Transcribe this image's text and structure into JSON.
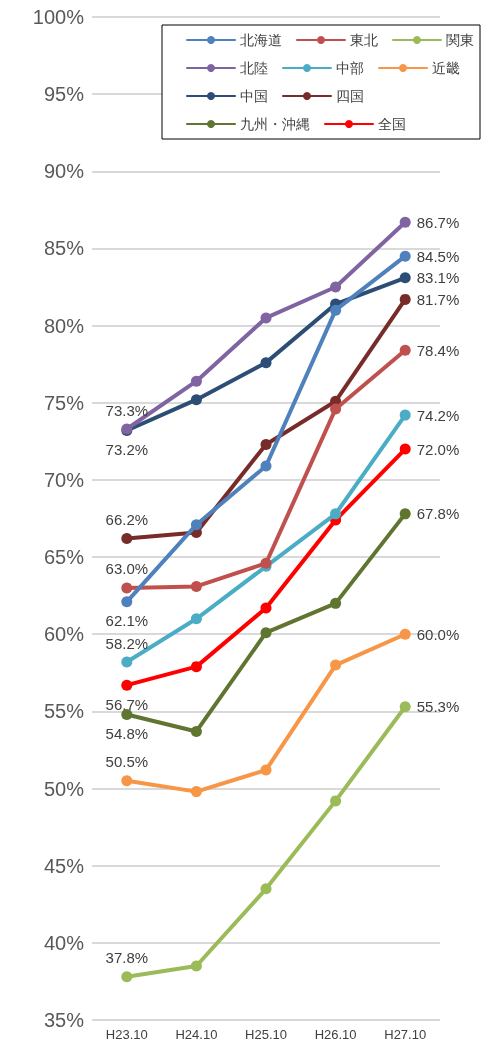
{
  "chart_data": {
    "type": "line",
    "categories": [
      "H23.10",
      "H24.10",
      "H25.10",
      "H26.10",
      "H27.10"
    ],
    "series": [
      {
        "name": "北海道",
        "color": "#4f81bd",
        "values": [
          62.1,
          67.1,
          70.9,
          81.0,
          84.5
        ],
        "value_labels": [
          "62.1%",
          null,
          null,
          null,
          "84.5%"
        ]
      },
      {
        "name": "東北",
        "color": "#c0504d",
        "values": [
          63.0,
          63.1,
          64.6,
          74.6,
          78.4
        ],
        "value_labels": [
          "63.0%",
          null,
          null,
          null,
          "78.4%"
        ]
      },
      {
        "name": "関東",
        "color": "#9bbb59",
        "values": [
          37.8,
          38.5,
          43.5,
          49.2,
          55.3
        ],
        "value_labels": [
          "37.8%",
          null,
          null,
          null,
          "55.3%"
        ]
      },
      {
        "name": "北陸",
        "color": "#8064a2",
        "values": [
          73.3,
          76.4,
          80.5,
          82.5,
          86.7
        ],
        "value_labels": [
          "73.3%",
          null,
          null,
          null,
          "86.7%"
        ]
      },
      {
        "name": "中部",
        "color": "#4bacc6",
        "values": [
          58.2,
          61.0,
          64.4,
          67.8,
          74.2
        ],
        "value_labels": [
          "58.2%",
          null,
          null,
          null,
          "74.2%"
        ]
      },
      {
        "name": "近畿",
        "color": "#f79646",
        "values": [
          50.5,
          49.8,
          51.2,
          58.0,
          60.0
        ],
        "value_labels": [
          "50.5%",
          null,
          null,
          null,
          "60.0%"
        ]
      },
      {
        "name": "中国",
        "color": "#2c4d75",
        "values": [
          73.2,
          75.2,
          77.6,
          81.4,
          83.1
        ],
        "value_labels": [
          "73.2%",
          null,
          null,
          null,
          "83.1%"
        ]
      },
      {
        "name": "四国",
        "color": "#772c2a",
        "values": [
          66.2,
          66.6,
          72.3,
          75.1,
          81.7
        ],
        "value_labels": [
          "66.2%",
          null,
          null,
          null,
          "81.7%"
        ]
      },
      {
        "name": "九州・沖縄",
        "color": "#5f7530",
        "values": [
          54.8,
          53.7,
          60.1,
          62.0,
          67.8
        ],
        "value_labels": [
          "54.8%",
          null,
          null,
          null,
          "67.8%"
        ]
      },
      {
        "name": "全国",
        "color": "#ff0000",
        "values": [
          56.7,
          57.9,
          61.7,
          67.4,
          72.0
        ],
        "value_labels": [
          "56.7%",
          null,
          null,
          null,
          "72.0%"
        ]
      }
    ],
    "ylim": [
      35,
      100
    ],
    "yticks": [
      {
        "value": 35,
        "label": "35%"
      },
      {
        "value": 40,
        "label": "40%"
      },
      {
        "value": 45,
        "label": "45%"
      },
      {
        "value": 50,
        "label": "50%"
      },
      {
        "value": 55,
        "label": "55%"
      },
      {
        "value": 60,
        "label": "60%"
      },
      {
        "value": 65,
        "label": "65%"
      },
      {
        "value": 70,
        "label": "70%"
      },
      {
        "value": 75,
        "label": "75%"
      },
      {
        "value": 80,
        "label": "80%"
      },
      {
        "value": 85,
        "label": "85%"
      },
      {
        "value": 90,
        "label": "90%"
      },
      {
        "value": 95,
        "label": "95%"
      },
      {
        "value": 100,
        "label": "100%"
      }
    ],
    "grid": "y",
    "legend": "top right",
    "marker": "circle",
    "line_style": "solid"
  }
}
